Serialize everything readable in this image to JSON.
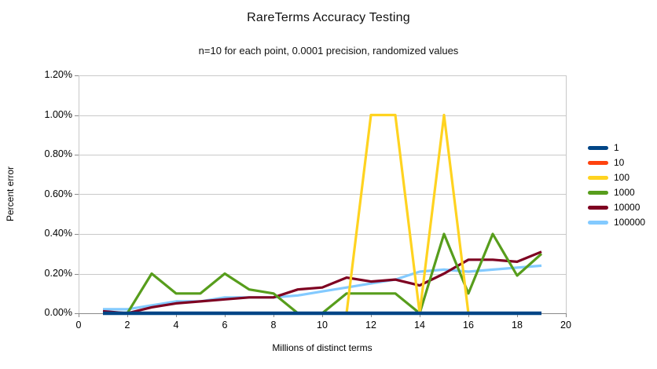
{
  "title": "RareTerms Accuracy Testing",
  "subtitle": "n=10 for each point, 0.0001 precision, randomized values",
  "chart_data": {
    "type": "line",
    "title": "RareTerms Accuracy Testing",
    "subtitle": "n=10 for each point, 0.0001 precision, randomized values",
    "xlabel": "Millions of distinct terms",
    "ylabel": "Percent error",
    "xlim": [
      0,
      20
    ],
    "ylim_percent": [
      0.0,
      1.2
    ],
    "grid": true,
    "legend_position": "right",
    "x_ticks": [
      0,
      2,
      4,
      6,
      8,
      10,
      12,
      14,
      16,
      18,
      20
    ],
    "y_tick_labels": [
      "0.00%",
      "0.20%",
      "0.40%",
      "0.60%",
      "0.80%",
      "1.00%",
      "1.20%"
    ],
    "x": [
      1,
      2,
      3,
      4,
      5,
      6,
      7,
      8,
      9,
      10,
      11,
      12,
      13,
      14,
      15,
      16,
      17,
      18,
      19
    ],
    "series": [
      {
        "name": "1",
        "color": "#004586",
        "values": [
          0,
          0,
          0,
          0,
          0,
          0,
          0,
          0,
          0,
          0,
          0,
          0,
          0,
          0,
          0,
          0,
          0,
          0,
          0
        ]
      },
      {
        "name": "10",
        "color": "#ff420e",
        "values": [
          0,
          0,
          0,
          0,
          0,
          0,
          0,
          0,
          0,
          0,
          0,
          0,
          0,
          0,
          0,
          0,
          0,
          0,
          0
        ]
      },
      {
        "name": "100",
        "color": "#ffd320",
        "values": [
          0,
          0,
          0,
          0,
          0,
          0,
          0,
          0,
          0,
          0,
          0,
          1.0,
          1.0,
          0,
          1.0,
          0,
          0,
          0,
          0
        ]
      },
      {
        "name": "1000",
        "color": "#579d1c",
        "values": [
          0,
          0,
          0.2,
          0.1,
          0.1,
          0.2,
          0.12,
          0.1,
          0,
          0,
          0.1,
          0.1,
          0.1,
          0,
          0.4,
          0.1,
          0.4,
          0.19,
          0.3
        ]
      },
      {
        "name": "10000",
        "color": "#7e0021",
        "values": [
          0.01,
          0,
          0.03,
          0.05,
          0.06,
          0.07,
          0.08,
          0.08,
          0.12,
          0.13,
          0.18,
          0.16,
          0.17,
          0.14,
          0.2,
          0.27,
          0.27,
          0.26,
          0.31
        ]
      },
      {
        "name": "100000",
        "color": "#83caff",
        "values": [
          0.02,
          0.02,
          0.04,
          0.06,
          0.06,
          0.08,
          0.08,
          0.08,
          0.09,
          0.11,
          0.13,
          0.15,
          0.17,
          0.21,
          0.22,
          0.21,
          0.22,
          0.23,
          0.24
        ]
      }
    ],
    "colors": {
      "gridline": "#c9c9c9",
      "plot_border": "#c9c9c9",
      "axis": "#8a8a8a",
      "background": "#ffffff"
    }
  }
}
